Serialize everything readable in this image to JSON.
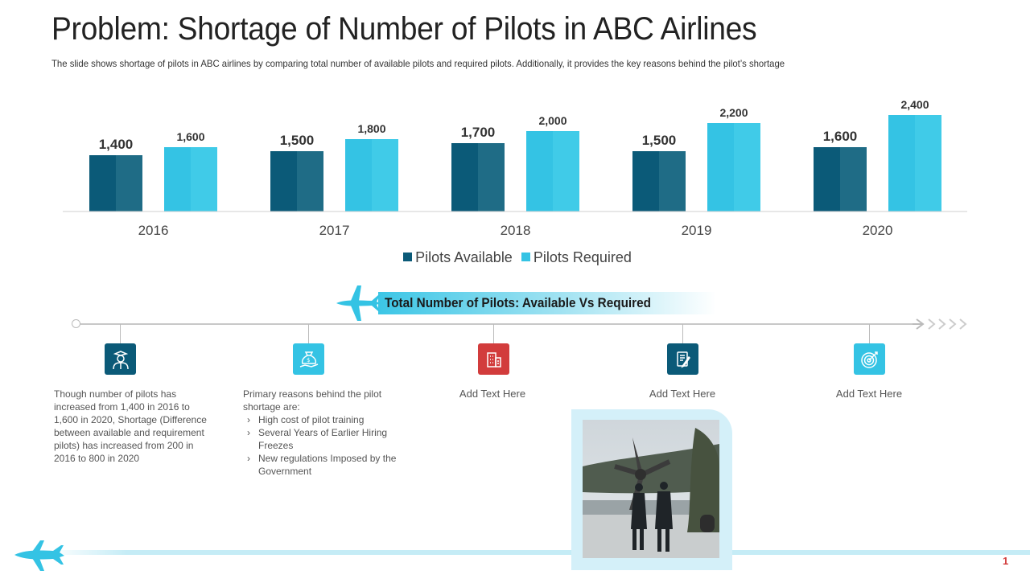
{
  "header": {
    "title": "Problem: Shortage of Number of Pilots in ABC Airlines",
    "subtitle": "The slide shows shortage of pilots in ABC airlines by comparing total number of available  pilots and required  pilots. Additionally,  it provides  the key reasons behind the pilot’s shortage"
  },
  "chart_data": {
    "type": "bar",
    "categories": [
      "2016",
      "2017",
      "2018",
      "2019",
      "2020"
    ],
    "series": [
      {
        "name": "Pilots Available",
        "values": [
          1400,
          1500,
          1700,
          1500,
          1600
        ],
        "labels": [
          "1,400",
          "1,500",
          "1,700",
          "1,500",
          "1,600"
        ],
        "color": "#0b5a78"
      },
      {
        "name": "Pilots Required",
        "values": [
          1600,
          1800,
          2000,
          2200,
          2400
        ],
        "labels": [
          "1,600",
          "1,800",
          "2,000",
          "2,200",
          "2,400"
        ],
        "color": "#34c3e4"
      }
    ],
    "ylim": [
      0,
      2400
    ],
    "grid": false,
    "legend_position": "bottom"
  },
  "timeline": {
    "banner_text": "Total Number of Pilots: Available Vs Required",
    "items": [
      {
        "icon": "pilot-icon",
        "color": "#0b5a78",
        "text": "Though number of pilots has increased from 1,400 in 2016 to 1,600 in 2020, Shortage (Difference between available and requirement pilots) has increased from 200 in 2016 to 800 in 2020"
      },
      {
        "icon": "money-bag-icon",
        "color": "#34c3e4",
        "intro": "Primary reasons behind the pilot shortage are:",
        "bullets": [
          "High cost of pilot training",
          "Several Years of Earlier Hiring Freezes",
          "New regulations Imposed by the Government"
        ]
      },
      {
        "icon": "building-icon",
        "color": "#d23c3c",
        "text": "Add Text Here"
      },
      {
        "icon": "document-pen-icon",
        "color": "#0b5a78",
        "text": "Add Text Here"
      },
      {
        "icon": "target-icon",
        "color": "#34c3e4",
        "text": "Add  Text Here"
      }
    ]
  },
  "page_number": "1"
}
